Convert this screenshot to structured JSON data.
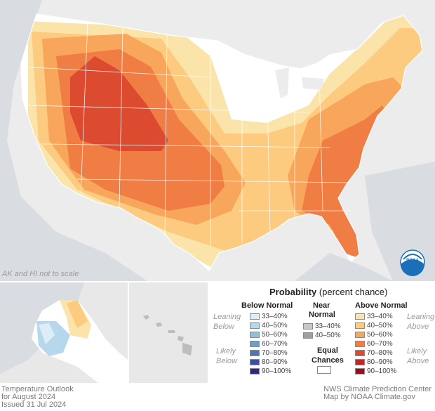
{
  "map_note": "AK and HI not to scale",
  "legend": {
    "title_bold": "Probability",
    "title_rest": "(percent chance)",
    "below": {
      "heading": "Below Normal",
      "leaning": [
        "Leaning",
        "Below"
      ],
      "likely": [
        "Likely",
        "Below"
      ],
      "items": [
        {
          "label": "33–40%",
          "color": "#dcedf7"
        },
        {
          "label": "40–50%",
          "color": "#b7d8ec"
        },
        {
          "label": "50–60%",
          "color": "#8fc0de"
        },
        {
          "label": "60–70%",
          "color": "#6d9ccd"
        },
        {
          "label": "70–80%",
          "color": "#4f75b5"
        },
        {
          "label": "80–90%",
          "color": "#3b4e9f"
        },
        {
          "label": "90–100%",
          "color": "#2b2a86"
        }
      ]
    },
    "near": {
      "heading": [
        "Near",
        "Normal"
      ],
      "items": [
        {
          "label": "33–40%",
          "color": "#c8c8c8"
        },
        {
          "label": "40–50%",
          "color": "#9f9f9f"
        }
      ]
    },
    "equal": {
      "label": [
        "Equal",
        "Chances"
      ],
      "color": "#ffffff"
    },
    "above": {
      "heading": "Above Normal",
      "leaning": [
        "Leaning",
        "Above"
      ],
      "likely": [
        "Likely",
        "Above"
      ],
      "items": [
        {
          "label": "33–40%",
          "color": "#fbe4a9"
        },
        {
          "label": "40–50%",
          "color": "#fccb7f"
        },
        {
          "label": "50–60%",
          "color": "#f8a65b"
        },
        {
          "label": "60–70%",
          "color": "#f07d44"
        },
        {
          "label": "70–80%",
          "color": "#dc4a30"
        },
        {
          "label": "80–90%",
          "color": "#bf2626"
        },
        {
          "label": "90–100%",
          "color": "#9b0d1d"
        }
      ]
    }
  },
  "footer": {
    "left": [
      "Temperature Outlook",
      "for August 2024",
      "Issued 31 Jul 2024"
    ],
    "right": [
      "NWS Climate Prediction Center",
      "Map by NOAA Climate.gov"
    ]
  },
  "logo": {
    "text": "NOAA"
  }
}
